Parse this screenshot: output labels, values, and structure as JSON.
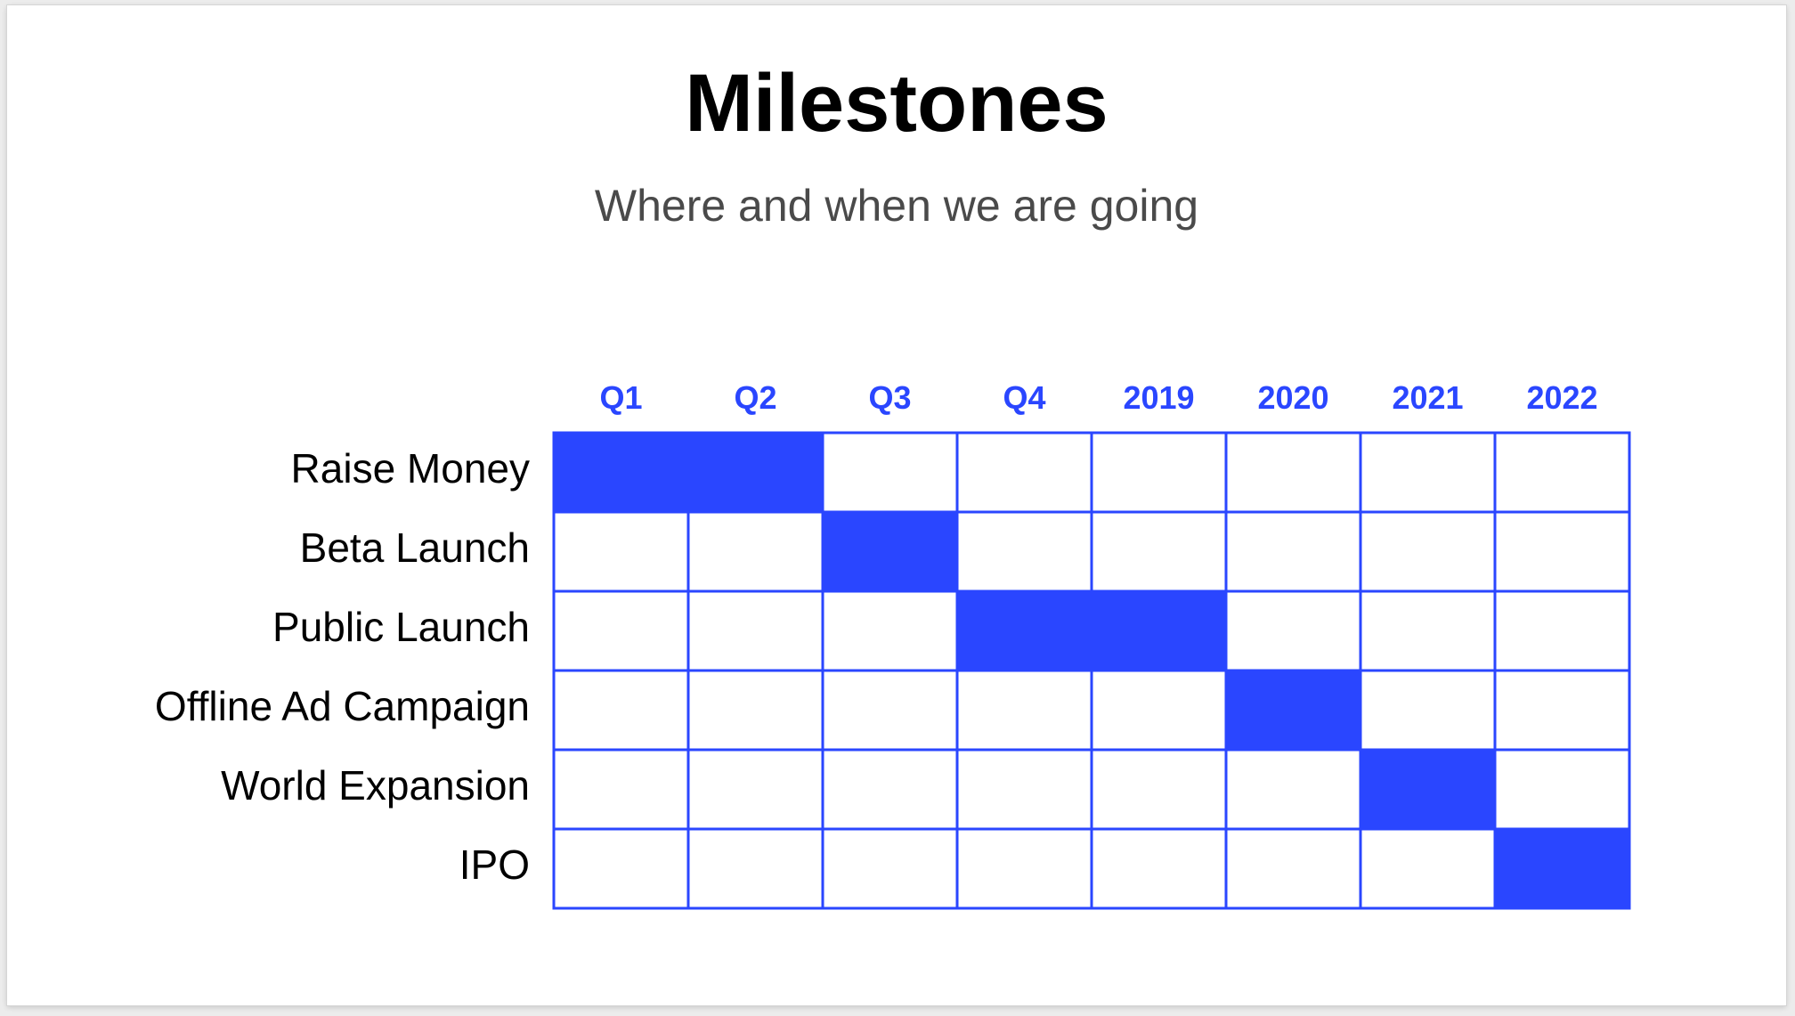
{
  "title": "Milestones",
  "subtitle": "Where and when we are going",
  "accent_color": "#2a46ff",
  "columns": [
    "Q1",
    "Q2",
    "Q3",
    "Q4",
    "2019",
    "2020",
    "2021",
    "2022"
  ],
  "rows": [
    {
      "label": "Raise Money",
      "span": [
        "Q1",
        "Q2"
      ]
    },
    {
      "label": "Beta Launch",
      "span": [
        "Q3",
        "Q3"
      ]
    },
    {
      "label": "Public Launch",
      "span": [
        "Q4",
        "2019"
      ]
    },
    {
      "label": "Offline Ad Campaign",
      "span": [
        "2020",
        "2020"
      ]
    },
    {
      "label": "World Expansion",
      "span": [
        "2021",
        "2021"
      ]
    },
    {
      "label": "IPO",
      "span": [
        "2022",
        "2022"
      ]
    }
  ]
}
